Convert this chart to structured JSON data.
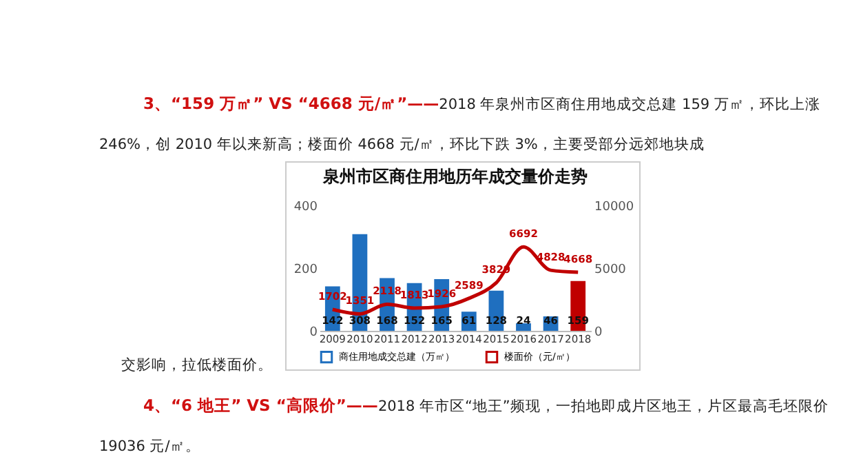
{
  "chart_data": {
    "type": "bar",
    "title": "泉州市区商住用地历年成交量价走势",
    "annotations": [
      "3、“159 万㎡” VS “4668 元/㎡”——",
      "2018 年泉州市区商住用地成交总建 159 万㎡，环比上涨 246%，创 2010 年以来新高；楼面价 4668 元/㎡，环比下跌 3%，主要受部分远郊地块成",
      "交影响，拉低楼面价。",
      "4、“6 地王” VS “高限价”——",
      "2018 年市区“地王”频现，一拍地即成片区地王，片区最高毛坯限价 19036 元/㎡。"
    ],
    "categories": [
      "2009",
      "2010",
      "2011",
      "2012",
      "2013",
      "2014",
      "2015",
      "2016",
      "2017",
      "2018"
    ],
    "series": [
      {
        "name": "商住用地成交总建（万㎡）",
        "color": "#1f6fbf",
        "colors": [
          "#1f6fbf",
          "#1f6fbf",
          "#1f6fbf",
          "#1f6fbf",
          "#1f6fbf",
          "#1f6fbf",
          "#1f6fbf",
          "#1f6fbf",
          "#1f6fbf",
          "#c00000"
        ],
        "values": [
          142,
          308,
          168,
          152,
          165,
          61,
          128,
          24,
          46,
          159
        ]
      },
      {
        "name": "楼面价（元/㎡）",
        "type": "line",
        "axis": "y2",
        "color": "#c00000",
        "values": [
          1702,
          1351,
          2118,
          1813,
          1926,
          2589,
          3829,
          6692,
          4828,
          4668
        ]
      }
    ],
    "ylim": [
      0,
      400
    ],
    "yticks": [
      0,
      200,
      400
    ],
    "y2lim": [
      0,
      10000
    ],
    "y2ticks": [
      0,
      5000,
      10000
    ],
    "data_labels": true,
    "legend": "bottom"
  }
}
